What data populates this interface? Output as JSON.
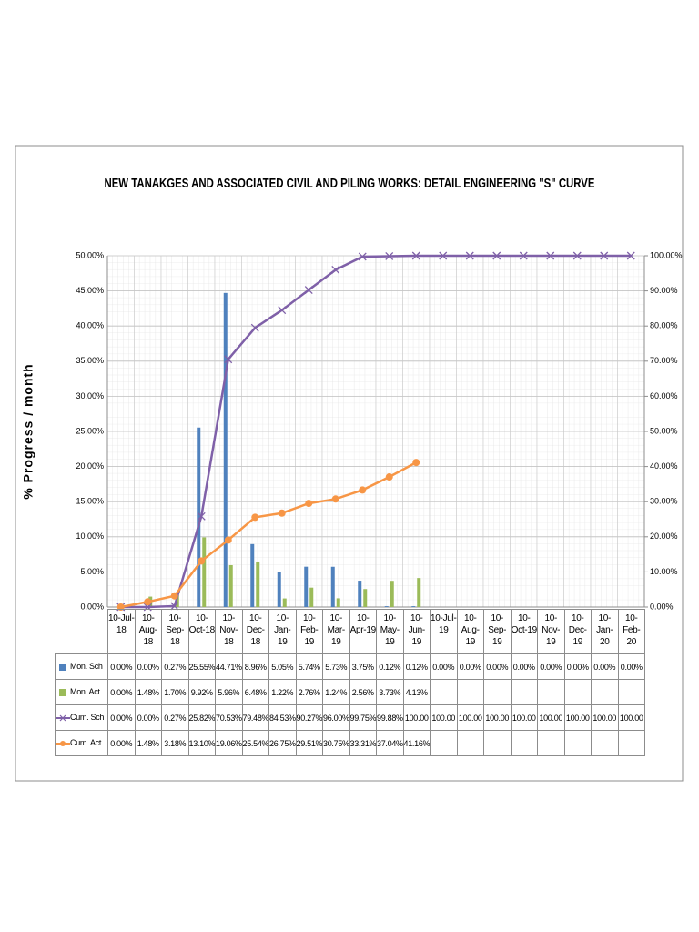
{
  "chart_data": {
    "type": "combo",
    "title": "NEW TANAKGES AND ASSOCIATED CIVIL AND PILING WORKS: DETAIL ENGINEERING \"S\" CURVE",
    "y_label": "% Progress / month",
    "categories": [
      "10-Jul-18",
      "10-Aug-18",
      "10-Sep-18",
      "10-Oct-18",
      "10-Nov-18",
      "10-Dec-18",
      "10-Jan-19",
      "10-Feb-19",
      "10-Mar-19",
      "10-Apr-19",
      "10-May-19",
      "10-Jun-19",
      "10-Jul-19",
      "10-Aug-19",
      "10-Sep-19",
      "10-Oct-19",
      "10-Nov-19",
      "10-Dec-19",
      "10-Jan-20",
      "10-Feb-20"
    ],
    "series": [
      {
        "name": "Mon. Sch",
        "type": "bar",
        "color": "#4f81bd",
        "values": [
          0,
          0,
          0.27,
          25.55,
          44.71,
          8.96,
          5.05,
          5.74,
          5.73,
          3.75,
          0.12,
          0.12,
          0,
          0,
          0,
          0,
          0,
          0,
          0,
          0
        ],
        "value_labels": [
          "0.00%",
          "0.00%",
          "0.27%",
          "25.55%",
          "44.71%",
          "8.96%",
          "5.05%",
          "5.74%",
          "5.73%",
          "3.75%",
          "0.12%",
          "0.12%",
          "0.00%",
          "0.00%",
          "0.00%",
          "0.00%",
          "0.00%",
          "0.00%",
          "0.00%",
          "0.00%"
        ]
      },
      {
        "name": "Mon. Act",
        "type": "bar",
        "color": "#9bbb59",
        "values": [
          0,
          1.48,
          1.7,
          9.92,
          5.96,
          6.48,
          1.22,
          2.76,
          1.24,
          2.56,
          3.73,
          4.13,
          null,
          null,
          null,
          null,
          null,
          null,
          null,
          null
        ],
        "value_labels": [
          "0.00%",
          "1.48%",
          "1.70%",
          "9.92%",
          "5.96%",
          "6.48%",
          "1.22%",
          "2.76%",
          "1.24%",
          "2.56%",
          "3.73%",
          "4.13%",
          null,
          null,
          null,
          null,
          null,
          null,
          null,
          null
        ]
      },
      {
        "name": "Cum. Sch",
        "type": "line",
        "axis": "y2",
        "marker": "x",
        "color": "#7f60a8",
        "values": [
          0,
          0,
          0.27,
          25.82,
          70.53,
          79.48,
          84.53,
          90.27,
          96.0,
          99.75,
          99.88,
          100,
          100,
          100,
          100,
          100,
          100,
          100,
          100,
          100
        ],
        "value_labels": [
          "0.00%",
          "0.00%",
          "0.27%",
          "25.82%",
          "70.53%",
          "79.48%",
          "84.53%",
          "90.27%",
          "96.00%",
          "99.75%",
          "99.88%",
          "100.00",
          "100.00",
          "100.00",
          "100.00",
          "100.00",
          "100.00",
          "100.00",
          "100.00",
          "100.00"
        ]
      },
      {
        "name": "Cum. Act",
        "type": "line",
        "axis": "y2",
        "marker": "circle",
        "color": "#f79646",
        "values": [
          0,
          1.48,
          3.18,
          13.1,
          19.06,
          25.54,
          26.75,
          29.51,
          30.75,
          33.31,
          37.04,
          41.16,
          null,
          null,
          null,
          null,
          null,
          null,
          null,
          null
        ],
        "value_labels": [
          "0.00%",
          "1.48%",
          "3.18%",
          "13.10%",
          "19.06%",
          "25.54%",
          "26.75%",
          "29.51%",
          "30.75%",
          "33.31%",
          "37.04%",
          "41.16%",
          null,
          null,
          null,
          null,
          null,
          null,
          null,
          null
        ]
      }
    ],
    "ylim": [
      0,
      50
    ],
    "yticks": [
      {
        "value": 0,
        "label": "0.00%"
      },
      {
        "value": 5,
        "label": "5.00%"
      },
      {
        "value": 10,
        "label": "10.00%"
      },
      {
        "value": 15,
        "label": "15.00%"
      },
      {
        "value": 20,
        "label": "20.00%"
      },
      {
        "value": 25,
        "label": "25.00%"
      },
      {
        "value": 30,
        "label": "30.00%"
      },
      {
        "value": 35,
        "label": "35.00%"
      },
      {
        "value": 40,
        "label": "40.00%"
      },
      {
        "value": 45,
        "label": "45.00%"
      },
      {
        "value": 50,
        "label": "50.00%"
      }
    ],
    "y2lim": [
      0,
      100
    ],
    "y2ticks": [
      {
        "value": 0,
        "label": "0.00%"
      },
      {
        "value": 10,
        "label": "10.00%"
      },
      {
        "value": 20,
        "label": "20.00%"
      },
      {
        "value": 30,
        "label": "30.00%"
      },
      {
        "value": 40,
        "label": "40.00%"
      },
      {
        "value": 50,
        "label": "50.00%"
      },
      {
        "value": 60,
        "label": "60.00%"
      },
      {
        "value": 70,
        "label": "70.00%"
      },
      {
        "value": 80,
        "label": "80.00%"
      },
      {
        "value": 90,
        "label": "90.00%"
      },
      {
        "value": 100,
        "label": "100.00%"
      }
    ],
    "grid": true
  }
}
